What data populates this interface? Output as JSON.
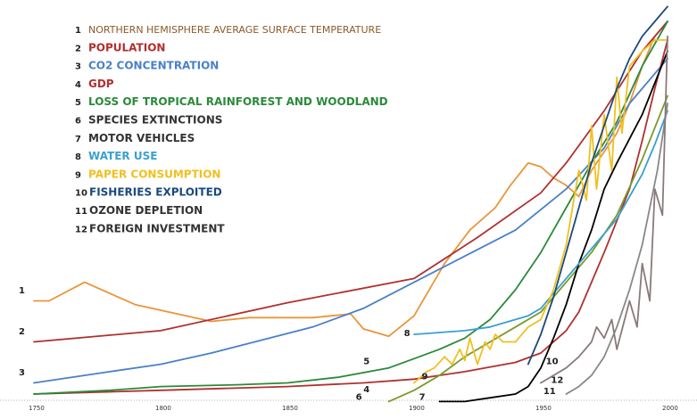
{
  "chart_data": {
    "type": "line",
    "title": "",
    "xlabel": "",
    "ylabel": "",
    "xlim": [
      1750,
      2000
    ],
    "ylim": [
      0,
      100
    ],
    "x_ticks": [
      1750,
      1800,
      1850,
      1900,
      1950,
      2000
    ],
    "x_tick_labels": [
      "1750",
      "1800",
      "1850",
      "1900",
      "1950",
      "2000"
    ],
    "grid": false,
    "legend_position": "top-left",
    "series": [
      {
        "id": "1",
        "name": "NORTHERN HEMISPHERE AVERAGE SURFACE TEMPERATURE",
        "color": "#e8963a",
        "x": [
          1750,
          1756,
          1770,
          1790,
          1820,
          1835,
          1850,
          1860,
          1875,
          1880,
          1890,
          1900,
          1912,
          1922,
          1932,
          1938,
          1945,
          1950,
          1955,
          1960,
          1965,
          1970,
          1975,
          1980,
          1985,
          1990,
          1995,
          2000
        ],
        "y": [
          25,
          25,
          30,
          24,
          19.5,
          20.5,
          20.5,
          20.5,
          21.5,
          17.5,
          15.5,
          21,
          35,
          44,
          50,
          56,
          62,
          61,
          58,
          56,
          53,
          60,
          65,
          70,
          78,
          88,
          96,
          100
        ]
      },
      {
        "id": "2",
        "name": "POPULATION",
        "color": "#b03030",
        "x": [
          1750,
          1800,
          1850,
          1900,
          1925,
          1950,
          1960,
          1975,
          1990,
          2000
        ],
        "y": [
          14,
          17,
          24.5,
          31,
          42,
          54,
          62,
          76,
          92,
          100
        ]
      },
      {
        "id": "3",
        "name": "CO2 CONCENTRATION",
        "color": "#4a80c8",
        "x": [
          1750,
          1780,
          1800,
          1820,
          1840,
          1860,
          1880,
          1900,
          1920,
          1940,
          1960,
          1975,
          1985,
          2000
        ],
        "y": [
          3,
          6,
          8,
          11,
          14.5,
          18,
          23,
          30,
          37,
          44,
          55,
          66,
          78,
          90
        ]
      },
      {
        "id": "4",
        "name": "GDP",
        "color": "#b03030",
        "x": [
          1750,
          1800,
          1850,
          1880,
          1900,
          1920,
          1940,
          1950,
          1955,
          1960,
          1965,
          1970,
          1975,
          1985,
          1990,
          1995,
          2000
        ],
        "y": [
          0,
          1,
          2,
          3,
          4,
          6,
          8.5,
          11,
          14,
          17,
          22,
          30,
          38,
          55,
          68,
          82,
          95
        ]
      },
      {
        "id": "5",
        "name": "LOSS OF TROPICAL RAINFOREST AND WOODLAND",
        "color": "#2a8a3a",
        "x": [
          1750,
          1780,
          1800,
          1830,
          1850,
          1870,
          1890,
          1900,
          1910,
          1920,
          1930,
          1940,
          1950,
          1960,
          1970,
          1980,
          1990,
          2000
        ],
        "y": [
          0,
          1,
          2,
          2.5,
          3,
          4.5,
          7,
          9.5,
          12,
          15,
          20,
          28,
          38,
          50,
          62,
          73,
          88,
          100
        ]
      },
      {
        "id": "6",
        "name": "SPECIES EXTINCTIONS",
        "color": "#7a9a2a",
        "x": [
          1890,
          1900,
          1910,
          1920,
          1930,
          1940,
          1950,
          1960,
          1970,
          1980,
          1990,
          2000
        ],
        "y": [
          -2,
          1,
          5,
          10,
          14,
          18,
          22,
          30,
          38,
          48,
          63,
          80
        ]
      },
      {
        "id": "7",
        "name": "MOTOR VEHICLES",
        "color": "#000000",
        "x": [
          1910,
          1920,
          1930,
          1940,
          1945,
          1950,
          1955,
          1960,
          1965,
          1970,
          1975,
          1980,
          1990,
          2000
        ],
        "y": [
          -2,
          -2,
          -1,
          0,
          2,
          7,
          15,
          24,
          35,
          44,
          55,
          62,
          75,
          92
        ]
      },
      {
        "id": "8",
        "name": "WATER USE",
        "color": "#3aa0d0",
        "x": [
          1900,
          1910,
          1920,
          1930,
          1940,
          1945,
          1950,
          1955,
          1960,
          1965,
          1970,
          1975,
          1980,
          1985,
          1990,
          1995,
          2000
        ],
        "y": [
          16,
          16.5,
          17,
          18,
          20,
          21,
          23,
          27,
          31,
          35,
          39,
          43,
          47,
          53,
          59,
          67,
          76
        ]
      },
      {
        "id": "9",
        "name": "PAPER CONSUMPTION",
        "color": "#f0c020",
        "x": [
          1900,
          1905,
          1908,
          1912,
          1915,
          1918,
          1920,
          1922,
          1925,
          1928,
          1930,
          1932,
          1935,
          1940,
          1945,
          1950,
          1955,
          1960,
          1965,
          1968,
          1970,
          1972,
          1975,
          1978,
          1980,
          1982,
          1985,
          1990,
          1995,
          2000
        ],
        "y": [
          3,
          6,
          7,
          10,
          8,
          12,
          9,
          15,
          8,
          14,
          12,
          16,
          14,
          14,
          18,
          20,
          28,
          40,
          60,
          52,
          72,
          55,
          75,
          60,
          85,
          70,
          88,
          92,
          95,
          95
        ]
      },
      {
        "id": "10",
        "name": "FISHERIES EXPLOITED",
        "color": "#1a4a7a",
        "x": [
          1945,
          1950,
          1955,
          1960,
          1965,
          1970,
          1975,
          1980,
          1985,
          1990,
          1995,
          2000
        ],
        "y": [
          8,
          16,
          26,
          38,
          50,
          62,
          72,
          82,
          90,
          96,
          100,
          104
        ]
      },
      {
        "id": "11",
        "name": "OZONE DEPLETION",
        "color": "#888888",
        "x": [
          1960,
          1965,
          1970,
          1975,
          1980,
          1985,
          1990,
          1993,
          1996,
          2000
        ],
        "y": [
          0,
          2,
          5,
          10,
          18,
          28,
          40,
          50,
          60,
          78
        ]
      },
      {
        "id": "12",
        "name": "FOREIGN INVESTMENT",
        "color": "#8a7a7a",
        "x": [
          1950,
          1955,
          1960,
          1965,
          1970,
          1972,
          1975,
          1978,
          1980,
          1985,
          1988,
          1990,
          1993,
          1995,
          1998,
          2000
        ],
        "y": [
          3,
          5,
          7,
          10,
          14,
          18,
          15,
          20,
          12,
          25,
          18,
          35,
          25,
          55,
          48,
          96
        ]
      }
    ],
    "series_labels": [
      {
        "id": "1",
        "text": "1",
        "x": 1744,
        "y": 27
      },
      {
        "id": "2",
        "text": "2",
        "x": 1744,
        "y": 16
      },
      {
        "id": "3",
        "text": "3",
        "x": 1744,
        "y": 5
      },
      {
        "id": "4",
        "text": "4",
        "x": 1880,
        "y": 0.5
      },
      {
        "id": "5",
        "text": "5",
        "x": 1880,
        "y": 8
      },
      {
        "id": "6",
        "text": "6",
        "x": 1877,
        "y": -1.5
      },
      {
        "id": "7",
        "text": "7",
        "x": 1902,
        "y": -1.5
      },
      {
        "id": "8",
        "text": "8",
        "x": 1896,
        "y": 15.5
      },
      {
        "id": "9",
        "text": "9",
        "x": 1903,
        "y": 4
      },
      {
        "id": "10",
        "text": "10",
        "x": 1952,
        "y": 8
      },
      {
        "id": "11",
        "text": "11",
        "x": 1951,
        "y": 0
      },
      {
        "id": "12",
        "text": "12",
        "x": 1954,
        "y": 3
      }
    ]
  }
}
